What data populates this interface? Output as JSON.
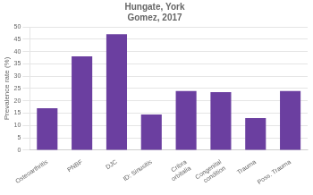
{
  "chart_data": {
    "type": "bar",
    "title": "Hungate, York\nGomez, 2017",
    "ylabel": "Prevalence rate (%)",
    "categories": [
      "Osteoarthritis",
      "PNBF",
      "DJC",
      "ID: Sinusitis",
      "Cribra\norbitalia",
      "Congenital\ncondition",
      "Trauma",
      "Poss. Trauma"
    ],
    "values": [
      17,
      38,
      47,
      14.5,
      24,
      23.5,
      13,
      24
    ],
    "color": "#6b3fa0",
    "ylim": [
      0,
      50
    ],
    "yticks": [
      0,
      5,
      10,
      15,
      20,
      25,
      30,
      35,
      40,
      45,
      50
    ],
    "grid": true
  }
}
